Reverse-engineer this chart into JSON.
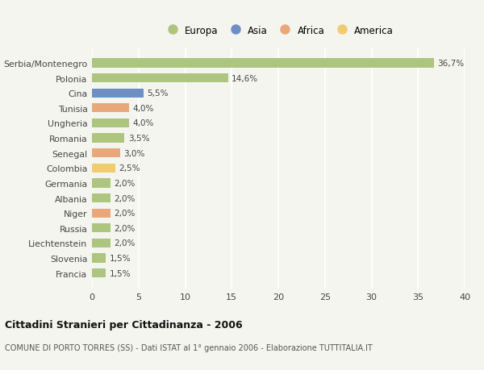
{
  "categories": [
    "Serbia/Montenegro",
    "Polonia",
    "Cina",
    "Tunisia",
    "Ungheria",
    "Romania",
    "Senegal",
    "Colombia",
    "Germania",
    "Albania",
    "Niger",
    "Russia",
    "Liechtenstein",
    "Slovenia",
    "Francia"
  ],
  "values": [
    36.7,
    14.6,
    5.5,
    4.0,
    4.0,
    3.5,
    3.0,
    2.5,
    2.0,
    2.0,
    2.0,
    2.0,
    2.0,
    1.5,
    1.5
  ],
  "labels": [
    "36,7%",
    "14,6%",
    "5,5%",
    "4,0%",
    "4,0%",
    "3,5%",
    "3,0%",
    "2,5%",
    "2,0%",
    "2,0%",
    "2,0%",
    "2,0%",
    "2,0%",
    "1,5%",
    "1,5%"
  ],
  "continent": [
    "Europa",
    "Europa",
    "Asia",
    "Africa",
    "Europa",
    "Europa",
    "Africa",
    "America",
    "Europa",
    "Europa",
    "Africa",
    "Europa",
    "Europa",
    "Europa",
    "Europa"
  ],
  "colors": {
    "Europa": "#adc57f",
    "Asia": "#6e8fc4",
    "Africa": "#e8a87c",
    "America": "#f0cc6e"
  },
  "xlim": [
    0,
    40
  ],
  "xticks": [
    0,
    5,
    10,
    15,
    20,
    25,
    30,
    35,
    40
  ],
  "title1": "Cittadini Stranieri per Cittadinanza - 2006",
  "title2": "COMUNE DI PORTO TORRES (SS) - Dati ISTAT al 1° gennaio 2006 - Elaborazione TUTTITALIA.IT",
  "background_color": "#f5f5f0",
  "grid_color": "#ffffff",
  "bar_height": 0.6,
  "legend_order": [
    "Europa",
    "Asia",
    "Africa",
    "America"
  ]
}
